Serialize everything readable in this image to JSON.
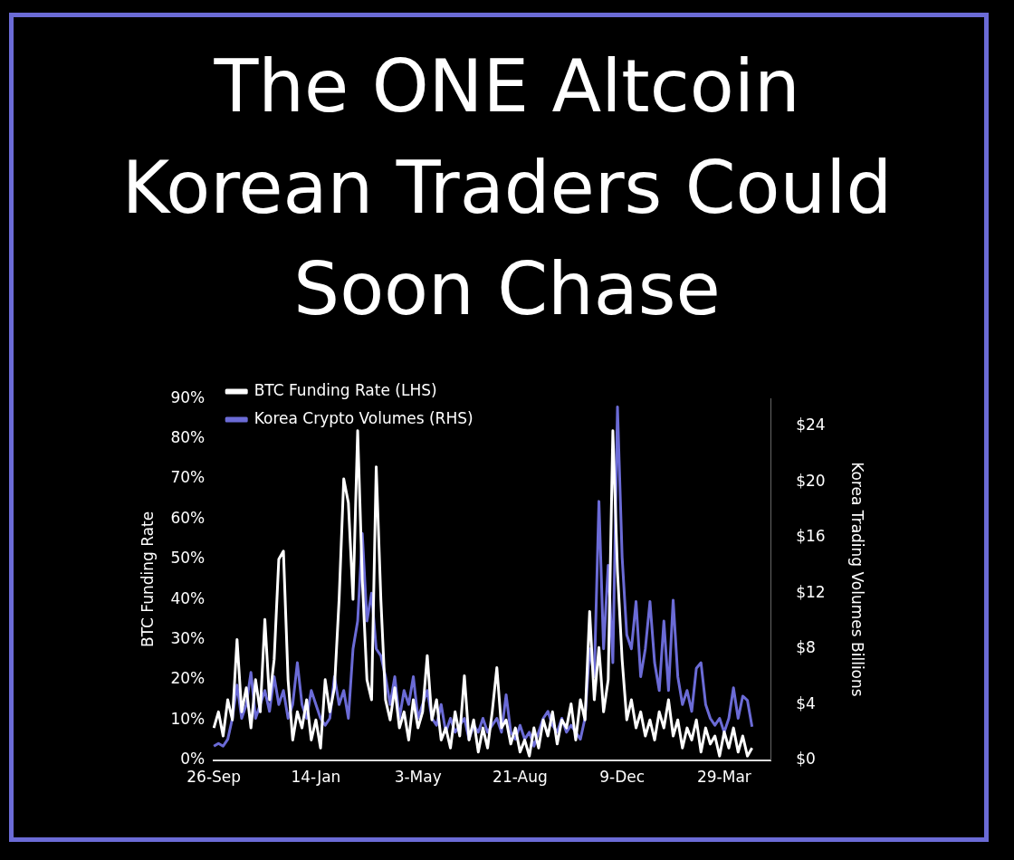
{
  "chart_data": {
    "type": "line",
    "title": "The ONE Altcoin Korean Traders Could Soon Chase",
    "ylabel": "BTC Funding Rate",
    "y2label": "Korea Trading Volumes Billions",
    "categories": [
      "26-Sep",
      null,
      null,
      null,
      null,
      null,
      null,
      null,
      null,
      null,
      null,
      null,
      null,
      null,
      null,
      null,
      null,
      null,
      null,
      null,
      null,
      null,
      "14-Jan",
      null,
      null,
      null,
      null,
      null,
      null,
      null,
      null,
      null,
      null,
      null,
      null,
      null,
      null,
      null,
      null,
      null,
      null,
      null,
      null,
      null,
      "3-May",
      null,
      null,
      null,
      null,
      null,
      null,
      null,
      null,
      null,
      null,
      null,
      null,
      null,
      null,
      null,
      null,
      null,
      null,
      null,
      null,
      null,
      "21-Aug",
      null,
      null,
      null,
      null,
      null,
      null,
      null,
      null,
      null,
      null,
      null,
      null,
      null,
      null,
      null,
      null,
      null,
      null,
      null,
      null,
      null,
      "9-Dec",
      null,
      null,
      null,
      null,
      null,
      null,
      null,
      null,
      null,
      null,
      null,
      null,
      null,
      null,
      null,
      null,
      null,
      null,
      null,
      null,
      null,
      "29-Mar",
      null,
      null,
      null,
      null,
      null,
      null,
      null,
      null,
      null,
      null
    ],
    "series": [
      {
        "name": "BTC Funding Rate (LHS)",
        "color": "#ffffff",
        "values": [
          8,
          12,
          6,
          15,
          10,
          30,
          12,
          18,
          8,
          20,
          12,
          35,
          15,
          25,
          50,
          52,
          20,
          5,
          12,
          8,
          15,
          5,
          10,
          3,
          20,
          12,
          18,
          40,
          70,
          64,
          40,
          82,
          45,
          20,
          15,
          73,
          40,
          15,
          10,
          18,
          8,
          12,
          5,
          15,
          8,
          12,
          26,
          10,
          15,
          5,
          8,
          3,
          12,
          6,
          21,
          5,
          10,
          2,
          8,
          3,
          12,
          23,
          8,
          10,
          4,
          8,
          2,
          5,
          1,
          8,
          3,
          10,
          6,
          12,
          4,
          10,
          8,
          14,
          5,
          15,
          10,
          37,
          15,
          28,
          12,
          20,
          82,
          47,
          25,
          10,
          15,
          8,
          12,
          6,
          10,
          5,
          12,
          8,
          15,
          6,
          10,
          3,
          8,
          5,
          10,
          2,
          8,
          4,
          6,
          1,
          7,
          3,
          8,
          2,
          6,
          1,
          3,
          null,
          null,
          null,
          null
        ]
      },
      {
        "name": "Korea Crypto Volumes (RHS)",
        "color": "#6b6bd6",
        "axis": "y2",
        "values": [
          1,
          1.2,
          1,
          1.5,
          3,
          5.4,
          3,
          4,
          6.3,
          3,
          4,
          5,
          3.5,
          6,
          4,
          5,
          3,
          4,
          7,
          4,
          3,
          5,
          4,
          3,
          2.5,
          3,
          6,
          4,
          5,
          3,
          8,
          10,
          16.3,
          10,
          12,
          8,
          7.5,
          6,
          4,
          6,
          3,
          5,
          4,
          6,
          3,
          4,
          5,
          3,
          2.5,
          4,
          2,
          3,
          2,
          2.5,
          3,
          1.5,
          2.5,
          2,
          3,
          2,
          2.5,
          3,
          2,
          4.7,
          2,
          1.5,
          2.5,
          1.5,
          2,
          1,
          2,
          3,
          3.5,
          2.5,
          2,
          3,
          2,
          2.5,
          2,
          1.5,
          3,
          8,
          6,
          18.6,
          8,
          14,
          7,
          25.4,
          14.6,
          9,
          8,
          11.4,
          6,
          8,
          11.4,
          7,
          5,
          10,
          5,
          11.5,
          6,
          4,
          5,
          3.5,
          6.6,
          7,
          4,
          3,
          2.5,
          3,
          2,
          3,
          5.2,
          3,
          4.6,
          4.3,
          2.4,
          null,
          null,
          null,
          null
        ]
      }
    ],
    "ylim": [
      0,
      90
    ],
    "yticks": [
      {
        "value": 0,
        "label": "0%"
      },
      {
        "value": 10,
        "label": "10%"
      },
      {
        "value": 20,
        "label": "20%"
      },
      {
        "value": 30,
        "label": "30%"
      },
      {
        "value": 40,
        "label": "40%"
      },
      {
        "value": 50,
        "label": "50%"
      },
      {
        "value": 60,
        "label": "60%"
      },
      {
        "value": 70,
        "label": "70%"
      },
      {
        "value": 80,
        "label": "80%"
      },
      {
        "value": 90,
        "label": "90%"
      }
    ],
    "y2lim": [
      0,
      26
    ],
    "y2ticks": [
      {
        "value": 0,
        "label": "$0"
      },
      {
        "value": 4,
        "label": "$4"
      },
      {
        "value": 8,
        "label": "$8"
      },
      {
        "value": 12,
        "label": "$12"
      },
      {
        "value": 16,
        "label": "$16"
      },
      {
        "value": 20,
        "label": "$20"
      },
      {
        "value": 24,
        "label": "$24"
      }
    ],
    "legend": "top left",
    "marker": "none",
    "grid": false
  }
}
